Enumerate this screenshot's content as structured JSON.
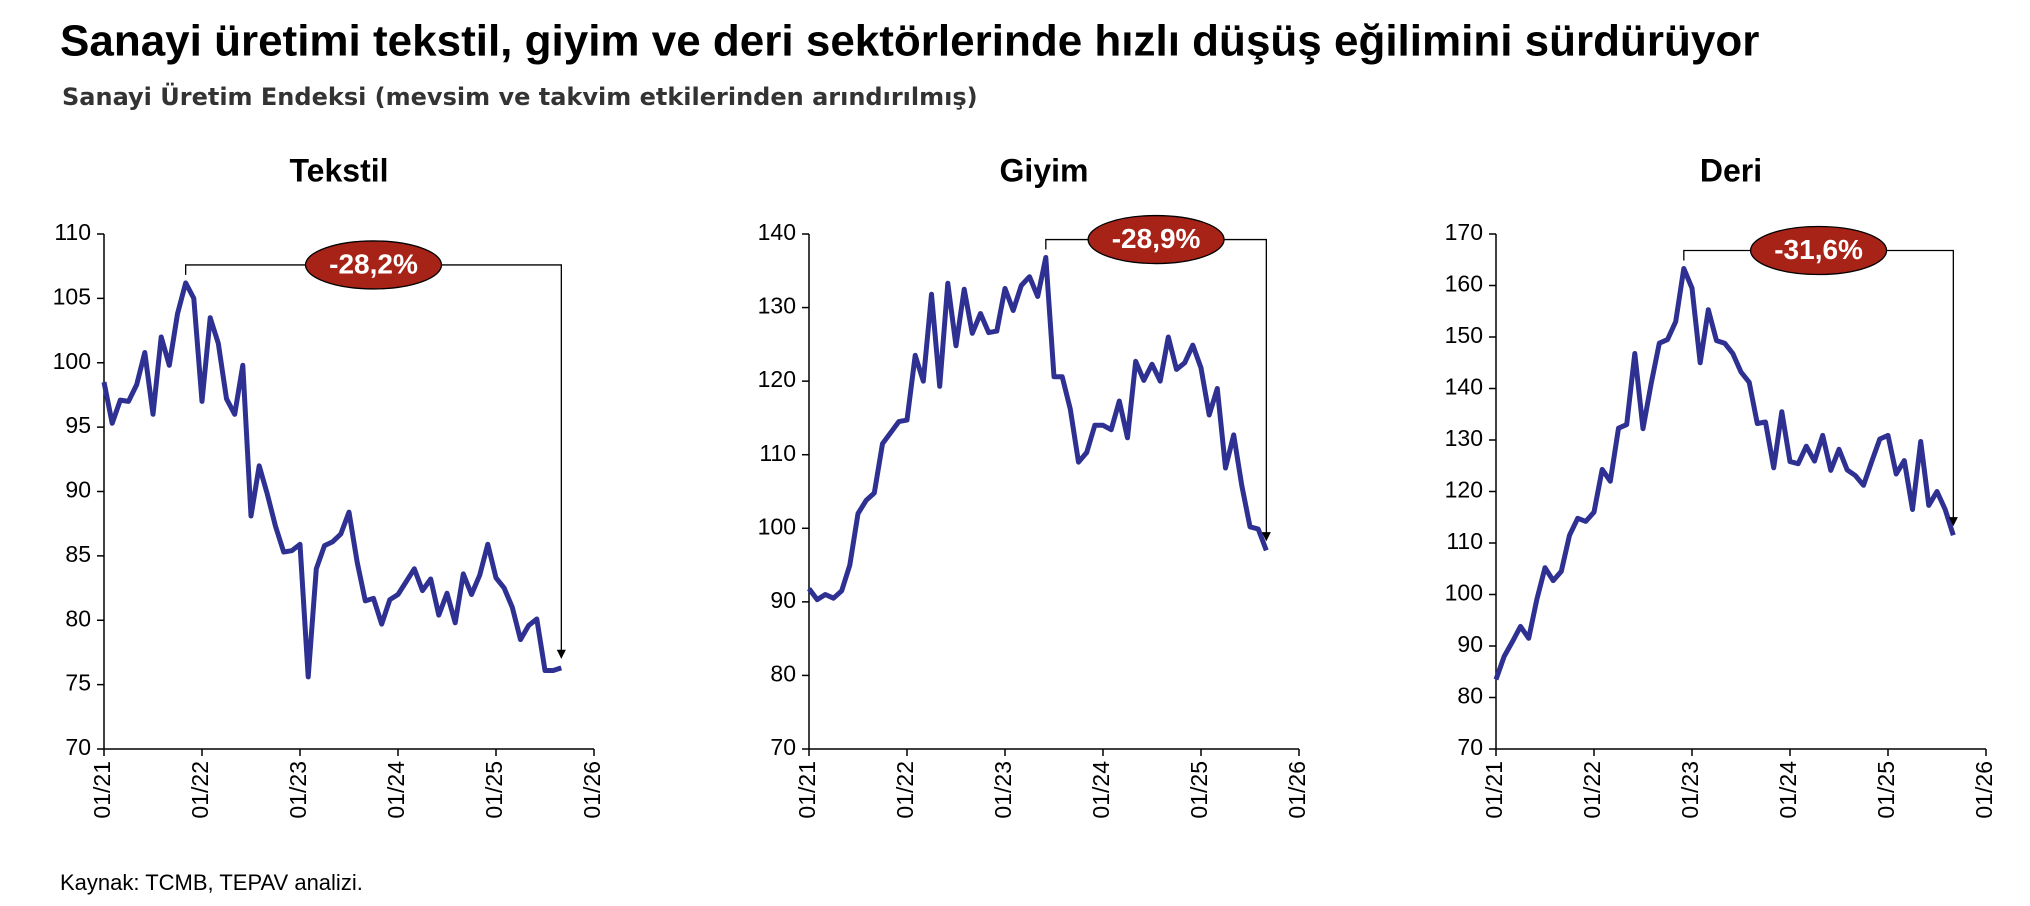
{
  "title": "Sanayi üretimi tekstil, giyim ve deri sektörlerinde hızlı düşüş eğilimini sürdürüyor",
  "subtitle": "Sanayi Üretim Endeksi (mevsim ve takvim etkilerinden arındırılmış)",
  "source": "Kaynak: TCMB, TEPAV analizi.",
  "chart_data": [
    {
      "type": "line",
      "title": "Tekstil",
      "annotation": "-28,2%",
      "color": "#2e3192",
      "ylim": [
        70,
        110
      ],
      "yticks": [
        70,
        75,
        80,
        85,
        90,
        95,
        100,
        105,
        110
      ],
      "xlim": [
        "01/21",
        "01/26"
      ],
      "xticks": [
        "01/21",
        "01/22",
        "01/23",
        "01/24",
        "01/25",
        "01/26"
      ],
      "x": [
        "01/21",
        "02/21",
        "03/21",
        "04/21",
        "05/21",
        "06/21",
        "07/21",
        "08/21",
        "09/21",
        "10/21",
        "11/21",
        "12/21",
        "01/22",
        "02/22",
        "03/22",
        "04/22",
        "05/22",
        "06/22",
        "07/22",
        "08/22",
        "09/22",
        "10/22",
        "11/22",
        "12/22",
        "01/23",
        "02/23",
        "03/23",
        "04/23",
        "05/23",
        "06/23",
        "07/23",
        "08/23",
        "09/23",
        "10/23",
        "11/23",
        "12/23",
        "01/24",
        "02/24",
        "03/24",
        "04/24",
        "05/24",
        "06/24",
        "07/24",
        "08/24",
        "09/24",
        "10/24",
        "11/24",
        "12/24",
        "01/25",
        "02/25",
        "03/25",
        "04/25",
        "05/25",
        "06/25",
        "07/25",
        "08/25",
        "09/25"
      ],
      "values": [
        98.5,
        95.3,
        97.1,
        97.0,
        98.3,
        100.8,
        96.0,
        102.0,
        99.8,
        103.8,
        106.2,
        105.0,
        97.0,
        103.5,
        101.5,
        97.2,
        96.0,
        99.8,
        88.1,
        92.0,
        89.8,
        87.3,
        85.3,
        85.4,
        85.9,
        75.6,
        84.0,
        85.8,
        86.1,
        86.7,
        88.4,
        84.5,
        81.5,
        81.7,
        79.7,
        81.6,
        82.0,
        83.0,
        84.0,
        82.3,
        83.2,
        80.4,
        82.1,
        79.8,
        83.6,
        82.0,
        83.5,
        85.9,
        83.3,
        82.5,
        81.0,
        78.5,
        79.6,
        80.1,
        76.1,
        76.1,
        76.3
      ]
    },
    {
      "type": "line",
      "title": "Giyim",
      "annotation": "-28,9%",
      "color": "#2e3192",
      "ylim": [
        70,
        140
      ],
      "yticks": [
        70,
        80,
        90,
        100,
        110,
        120,
        130,
        140
      ],
      "xlim": [
        "01/21",
        "01/26"
      ],
      "xticks": [
        "01/21",
        "01/22",
        "01/23",
        "01/24",
        "01/25",
        "01/26"
      ],
      "x": [
        "01/21",
        "02/21",
        "03/21",
        "04/21",
        "05/21",
        "06/21",
        "07/21",
        "08/21",
        "09/21",
        "10/21",
        "11/21",
        "12/21",
        "01/22",
        "02/22",
        "03/22",
        "04/22",
        "05/22",
        "06/22",
        "07/22",
        "08/22",
        "09/22",
        "10/22",
        "11/22",
        "12/22",
        "01/23",
        "02/23",
        "03/23",
        "04/23",
        "05/23",
        "06/23",
        "07/23",
        "08/23",
        "09/23",
        "10/23",
        "11/23",
        "12/23",
        "01/24",
        "02/24",
        "03/24",
        "04/24",
        "05/24",
        "06/24",
        "07/24",
        "08/24",
        "09/24",
        "10/24",
        "11/24",
        "12/24",
        "01/25",
        "02/25",
        "03/25",
        "04/25",
        "05/25",
        "06/25",
        "07/25",
        "08/25",
        "09/25"
      ],
      "values": [
        91.8,
        90.3,
        91.0,
        90.5,
        91.5,
        95,
        102,
        103.8,
        104.8,
        111.5,
        113,
        114.5,
        114.7,
        123.5,
        120,
        131.8,
        119.3,
        133.3,
        124.8,
        132.5,
        126.5,
        129.2,
        126.6,
        126.8,
        132.6,
        129.6,
        133,
        134.2,
        131.5,
        136.8,
        120.6,
        120.6,
        116.2,
        109,
        110.3,
        114,
        114,
        113.4,
        117.3,
        112.3,
        122.7,
        120.1,
        122.3,
        120,
        126,
        121.6,
        122.5,
        124.9,
        121.8,
        115.4,
        119,
        108.2,
        112.7,
        105.8,
        100.2,
        99.9,
        97.0
      ]
    },
    {
      "type": "line",
      "title": "Deri",
      "annotation": "-31,6%",
      "color": "#2e3192",
      "ylim": [
        70,
        170
      ],
      "yticks": [
        70,
        80,
        90,
        100,
        110,
        120,
        130,
        140,
        150,
        160,
        170
      ],
      "xlim": [
        "01/21",
        "01/26"
      ],
      "xticks": [
        "01/21",
        "01/22",
        "01/23",
        "01/24",
        "01/25",
        "01/26"
      ],
      "x": [
        "01/21",
        "02/21",
        "03/21",
        "04/21",
        "05/21",
        "06/21",
        "07/21",
        "08/21",
        "09/21",
        "10/21",
        "11/21",
        "12/21",
        "01/22",
        "02/22",
        "03/22",
        "04/22",
        "05/22",
        "06/22",
        "07/22",
        "08/22",
        "09/22",
        "10/22",
        "11/22",
        "12/22",
        "01/23",
        "02/23",
        "03/23",
        "04/23",
        "05/23",
        "06/23",
        "07/23",
        "08/23",
        "09/23",
        "10/23",
        "11/23",
        "12/23",
        "01/24",
        "02/24",
        "03/24",
        "04/24",
        "05/24",
        "06/24",
        "07/24",
        "08/24",
        "09/24",
        "10/24",
        "11/24",
        "12/24",
        "01/25",
        "02/25",
        "03/25",
        "04/25",
        "05/25",
        "06/25",
        "07/25",
        "08/25",
        "09/25"
      ],
      "values": [
        83.5,
        88,
        90.8,
        93.8,
        91.5,
        99,
        105.2,
        102.7,
        104.5,
        111.5,
        114.8,
        114.2,
        116,
        124.3,
        122,
        132.3,
        133,
        146.8,
        132.2,
        141,
        148.8,
        149.5,
        153,
        163.3,
        159.5,
        145,
        155.3,
        149.3,
        148.8,
        146.8,
        143.2,
        141.2,
        133.2,
        133.5,
        124.6,
        135.5,
        125.8,
        125.4,
        128.8,
        125.9,
        130.9,
        124.1,
        128.2,
        124.2,
        123.1,
        121.2,
        125.8,
        130.2,
        130.9,
        123.4,
        126,
        116.5,
        129.7,
        117.3,
        120,
        116.5,
        111.5
      ]
    }
  ]
}
